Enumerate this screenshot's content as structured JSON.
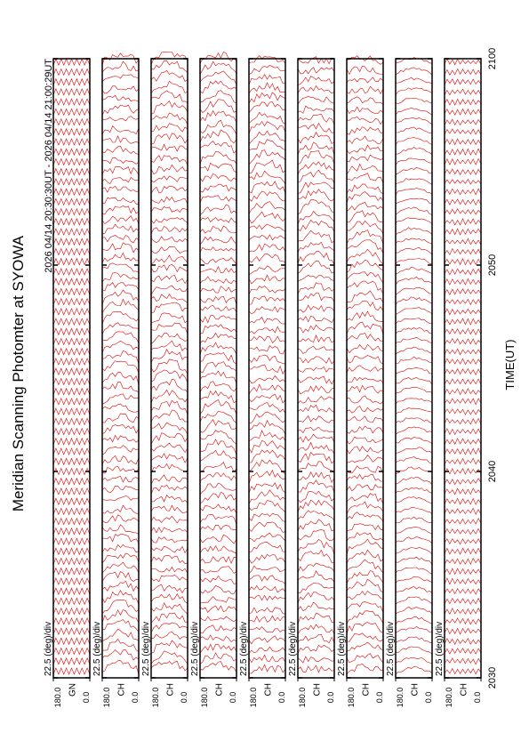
{
  "chart_data": {
    "type": "scan",
    "title": "Meridian Scanning Photomter at SYOWA",
    "subtitle": "2026 04/14 20:30:30UT - 2026 04/14 21:00:29UT",
    "xlabel": "TIME(UT)",
    "xlim": [
      "20:30",
      "21:00"
    ],
    "xticks": [
      {
        "value": "20:30",
        "label": "2030"
      },
      {
        "value": "20:40",
        "label": "2040"
      },
      {
        "value": "20:50",
        "label": "2050"
      },
      {
        "value": "21:00",
        "label": "2100"
      }
    ],
    "color": "#e00000",
    "panels": [
      {
        "name": "GN",
        "scale_label": "22.5 (deg)/div",
        "ylim": [
          0,
          180
        ],
        "yticks": [
          {
            "value": 180,
            "label": "180.0"
          },
          {
            "value": 0,
            "label": "0.0"
          }
        ]
      },
      {
        "name": "CH",
        "scale_label": "22.5 (deg)/div",
        "ylim": [
          0,
          180
        ],
        "yticks": [
          {
            "value": 180,
            "label": "180.0"
          },
          {
            "value": 0,
            "label": "0.0"
          }
        ]
      },
      {
        "name": "CH",
        "scale_label": "22.5 (deg)/div",
        "ylim": [
          0,
          180
        ],
        "yticks": [
          {
            "value": 180,
            "label": "180.0"
          },
          {
            "value": 0,
            "label": "0.0"
          }
        ]
      },
      {
        "name": "CH",
        "scale_label": "22.5 (deg)/div",
        "ylim": [
          0,
          180
        ],
        "yticks": [
          {
            "value": 180,
            "label": "180.0"
          },
          {
            "value": 0,
            "label": "0.0"
          }
        ]
      },
      {
        "name": "CH",
        "scale_label": "22.5 (deg)/div",
        "ylim": [
          0,
          180
        ],
        "yticks": [
          {
            "value": 180,
            "label": "180.0"
          },
          {
            "value": 0,
            "label": "0.0"
          }
        ]
      },
      {
        "name": "CH",
        "scale_label": "22.5 (deg)/div",
        "ylim": [
          0,
          180
        ],
        "yticks": [
          {
            "value": 180,
            "label": "180.0"
          },
          {
            "value": 0,
            "label": "0.0"
          }
        ]
      },
      {
        "name": "CH",
        "scale_label": "22.5 (deg)/div",
        "ylim": [
          0,
          180
        ],
        "yticks": [
          {
            "value": 180,
            "label": "180.0"
          },
          {
            "value": 0,
            "label": "0.0"
          }
        ]
      },
      {
        "name": "CH",
        "scale_label": "22.5 (deg)/div",
        "ylim": [
          0,
          180
        ],
        "yticks": [
          {
            "value": 180,
            "label": "180.0"
          },
          {
            "value": 0,
            "label": "0.0"
          }
        ]
      },
      {
        "name": "CH",
        "scale_label": "22.5 (deg)/div",
        "ylim": [
          0,
          180
        ],
        "yticks": [
          {
            "value": 180,
            "label": "180.0"
          },
          {
            "value": 0,
            "label": "0.0"
          }
        ]
      }
    ]
  }
}
